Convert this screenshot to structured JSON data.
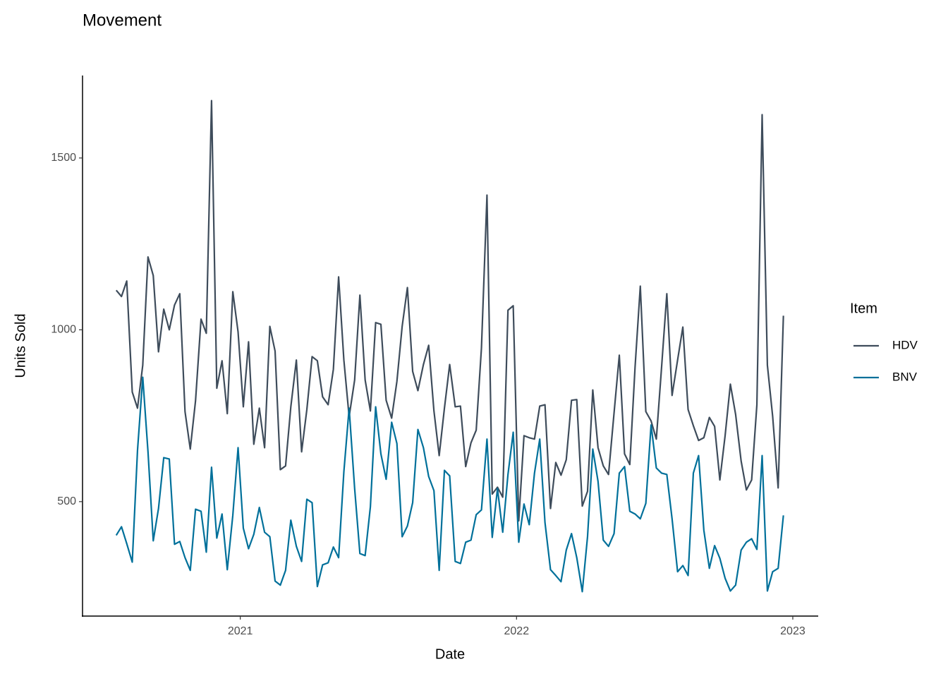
{
  "chart_data": {
    "type": "line",
    "title": "Movement",
    "xlabel": "Date",
    "ylabel": "Units Sold",
    "legend_title": "Item",
    "legend_position": "right",
    "x": [
      2020.551,
      2020.57,
      2020.589,
      2020.609,
      2020.628,
      2020.647,
      2020.666,
      2020.685,
      2020.704,
      2020.723,
      2020.743,
      2020.762,
      2020.781,
      2020.8,
      2020.819,
      2020.838,
      2020.858,
      2020.877,
      2020.896,
      2020.915,
      2020.934,
      2020.953,
      2020.973,
      2020.992,
      2021.011,
      2021.03,
      2021.049,
      2021.069,
      2021.088,
      2021.107,
      2021.126,
      2021.145,
      2021.164,
      2021.183,
      2021.203,
      2021.222,
      2021.241,
      2021.26,
      2021.279,
      2021.298,
      2021.318,
      2021.337,
      2021.356,
      2021.375,
      2021.394,
      2021.414,
      2021.433,
      2021.452,
      2021.471,
      2021.49,
      2021.509,
      2021.528,
      2021.548,
      2021.567,
      2021.586,
      2021.605,
      2021.624,
      2021.643,
      2021.663,
      2021.682,
      2021.701,
      2021.72,
      2021.739,
      2021.758,
      2021.778,
      2021.797,
      2021.816,
      2021.835,
      2021.854,
      2021.873,
      2021.893,
      2021.912,
      2021.931,
      2021.95,
      2021.969,
      2021.988,
      2022.008,
      2022.027,
      2022.046,
      2022.065,
      2022.084,
      2022.103,
      2022.123,
      2022.142,
      2022.161,
      2022.18,
      2022.199,
      2022.218,
      2022.238,
      2022.257,
      2022.276,
      2022.295,
      2022.314,
      2022.333,
      2022.353,
      2022.372,
      2022.391,
      2022.41,
      2022.429,
      2022.448,
      2022.468,
      2022.487,
      2022.506,
      2022.525,
      2022.544,
      2022.563,
      2022.583,
      2022.602,
      2022.621,
      2022.64,
      2022.659,
      2022.678,
      2022.698,
      2022.717,
      2022.736,
      2022.755,
      2022.774,
      2022.793,
      2022.813,
      2022.832,
      2022.851,
      2022.87,
      2022.889,
      2022.908,
      2022.927,
      2022.947,
      2022.966
    ],
    "series": [
      {
        "name": "HDV",
        "color": "#3e4c5b",
        "values": [
          1115,
          1097,
          1142,
          819,
          772,
          897,
          1212,
          1158,
          936,
          1060,
          1000,
          1072,
          1105,
          762,
          653,
          793,
          1031,
          990,
          1667,
          830,
          910,
          756,
          1111,
          994,
          776,
          965,
          667,
          772,
          657,
          1010,
          938,
          593,
          604,
          776,
          912,
          645,
          768,
          922,
          910,
          805,
          782,
          885,
          1154,
          912,
          747,
          854,
          1101,
          854,
          764,
          1021,
          1016,
          795,
          743,
          850,
          1010,
          1123,
          879,
          823,
          899,
          955,
          764,
          634,
          772,
          899,
          776,
          778,
          602,
          671,
          708,
          947,
          1392,
          522,
          542,
          513,
          1057,
          1070,
          444,
          692,
          686,
          682,
          778,
          782,
          480,
          614,
          577,
          622,
          795,
          797,
          487,
          530,
          825,
          657,
          604,
          579,
          758,
          926,
          639,
          608,
          891,
          1127,
          762,
          735,
          682,
          891,
          1105,
          809,
          912,
          1008,
          768,
          721,
          678,
          686,
          745,
          719,
          563,
          692,
          842,
          754,
          618,
          534,
          563,
          782,
          1626,
          897,
          749,
          540,
          1041
        ]
      },
      {
        "name": "BNV",
        "color": "#00709a",
        "values": [
          402,
          427,
          378,
          324,
          649,
          862,
          645,
          386,
          480,
          628,
          624,
          376,
          384,
          337,
          300,
          478,
          472,
          353,
          600,
          394,
          464,
          302,
          460,
          657,
          423,
          363,
          405,
          483,
          411,
          398,
          269,
          257,
          300,
          446,
          370,
          326,
          507,
          497,
          253,
          316,
          322,
          368,
          337,
          587,
          772,
          538,
          349,
          343,
          485,
          776,
          639,
          565,
          731,
          669,
          398,
          429,
          497,
          710,
          657,
          573,
          532,
          300,
          591,
          575,
          326,
          320,
          382,
          388,
          462,
          476,
          682,
          396,
          538,
          411,
          579,
          702,
          382,
          493,
          433,
          583,
          682,
          439,
          302,
          285,
          267,
          359,
          407,
          337,
          238,
          398,
          653,
          559,
          388,
          370,
          407,
          583,
          602,
          472,
          464,
          450,
          495,
          723,
          598,
          583,
          579,
          450,
          296,
          314,
          285,
          583,
          634,
          417,
          306,
          372,
          335,
          277,
          240,
          257,
          359,
          382,
          392,
          361,
          634,
          240,
          296,
          306,
          460
        ]
      }
    ],
    "xlim": [
      2020.429,
      2023.092
    ],
    "xticks": [
      2021,
      2022,
      2023
    ],
    "ylim": [
      167,
      1740
    ],
    "yticks": [
      500,
      1000,
      1500
    ],
    "grid": false
  }
}
